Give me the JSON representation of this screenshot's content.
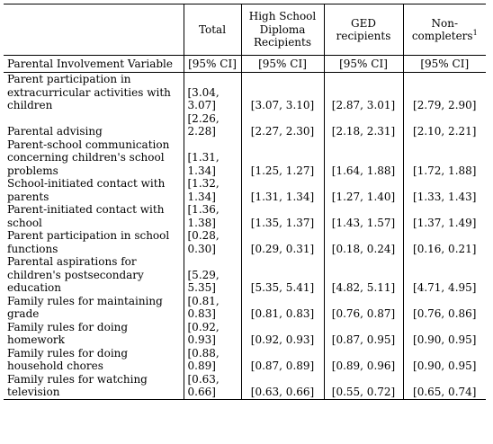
{
  "table": {
    "headers": {
      "total": "Total",
      "hs": "High School Diploma Recipients",
      "ged": "GED recipients",
      "non": "Non-completers",
      "non_sup": "1"
    },
    "subheader": {
      "label": "Parental Involvement Variable",
      "ci": "[95% CI]"
    },
    "rows": [
      {
        "label": "Parent participation in extracurricular activities with children",
        "total": "[3.04, 3.07]",
        "hs": "[3.07, 3.10]",
        "ged": "[2.87, 3.01]",
        "non": "[2.79, 2.90]"
      },
      {
        "label": "Parental advising",
        "total": "[2.26, 2.28]",
        "hs": "[2.27, 2.30]",
        "ged": "[2.18, 2.31]",
        "non": "[2.10, 2.21]"
      },
      {
        "label": "Parent-school communication concerning children's school problems",
        "total": "[1.31, 1.34]",
        "hs": "[1.25, 1.27]",
        "ged": "[1.64, 1.88]",
        "non": "[1.72, 1.88]"
      },
      {
        "label": "School-initiated contact with parents",
        "total": "[1.32, 1.34]",
        "hs": "[1.31, 1.34]",
        "ged": "[1.27, 1.40]",
        "non": "[1.33, 1.43]"
      },
      {
        "label": "Parent-initiated contact with school",
        "total": "[1.36, 1.38]",
        "hs": "[1.35, 1.37]",
        "ged": "[1.43, 1.57]",
        "non": "[1.37, 1.49]"
      },
      {
        "label": "Parent participation in school functions",
        "total": "[0.28, 0.30]",
        "hs": "[0.29, 0.31]",
        "ged": "[0.18, 0.24]",
        "non": "[0.16, 0.21]"
      },
      {
        "label": "Parental aspirations for children's postsecondary education",
        "total": "[5.29, 5.35]",
        "hs": "[5.35, 5.41]",
        "ged": "[4.82, 5.11]",
        "non": "[4.71, 4.95]"
      },
      {
        "label": "Family rules for maintaining grade",
        "total": "[0.81, 0.83]",
        "hs": "[0.81, 0.83]",
        "ged": "[0.76, 0.87]",
        "non": "[0.76, 0.86]"
      },
      {
        "label": "Family rules for doing homework",
        "total": "[0.92, 0.93]",
        "hs": "[0.92, 0.93]",
        "ged": "[0.87, 0.95]",
        "non": "[0.90, 0.95]"
      },
      {
        "label": "Family rules for doing household chores",
        "total": "[0.88, 0.89]",
        "hs": "[0.87, 0.89]",
        "ged": "[0.89, 0.96]",
        "non": "[0.90, 0.95]"
      },
      {
        "label": "Family rules for watching television",
        "total": "[0.63, 0.66]",
        "hs": "[0.63, 0.66]",
        "ged": "[0.55, 0.72]",
        "non": "[0.65, 0.74]"
      }
    ]
  }
}
